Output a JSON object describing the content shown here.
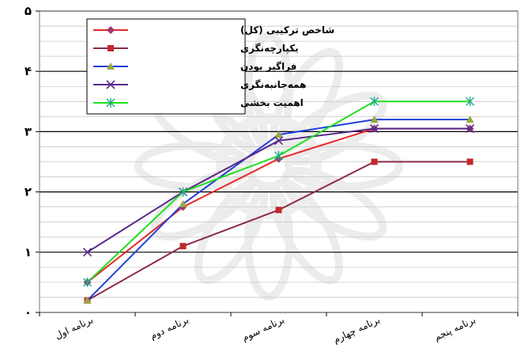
{
  "chart_data": {
    "type": "line",
    "title": "",
    "xlabel": "",
    "ylabel": "",
    "ylim": [
      0,
      5
    ],
    "y_tick_labels": [
      "۰",
      "۱",
      "۲",
      "۳",
      "۴",
      "۵"
    ],
    "grid": true,
    "legend_position": "top-left",
    "categories": [
      "برنامه اول",
      "برنامه دوم",
      "برنامه سوم",
      "برنامه چهارم",
      "برنامه پنجم"
    ],
    "series": [
      {
        "name": "شاخص ترکیبی (کل)",
        "color": "#e8262a",
        "marker": "diamond",
        "marker_color": "#9b3a6a",
        "values": [
          0.5,
          1.75,
          2.55,
          3.05,
          3.05
        ]
      },
      {
        "name": "یکپارچه‌نگری",
        "color": "#8b2a4a",
        "marker": "square",
        "marker_color": "#c1272d",
        "values": [
          0.2,
          1.1,
          1.7,
          2.5,
          2.5
        ]
      },
      {
        "name": "فراگیر بودن",
        "color": "#1f3fd8",
        "marker": "triangle",
        "marker_color": "#9aa83a",
        "values": [
          0.2,
          1.8,
          2.95,
          3.2,
          3.2
        ]
      },
      {
        "name": "همه‌جانبه‌نگری",
        "color": "#5a2a8a",
        "marker": "x",
        "marker_color": "#5a2a8a",
        "values": [
          1.0,
          2.0,
          2.85,
          3.05,
          3.05
        ]
      },
      {
        "name": "اهمیت بخشی",
        "color": "#1ee01e",
        "marker": "star",
        "marker_color": "#1fa890",
        "values": [
          0.5,
          2.0,
          2.6,
          3.5,
          3.5
        ]
      }
    ]
  }
}
